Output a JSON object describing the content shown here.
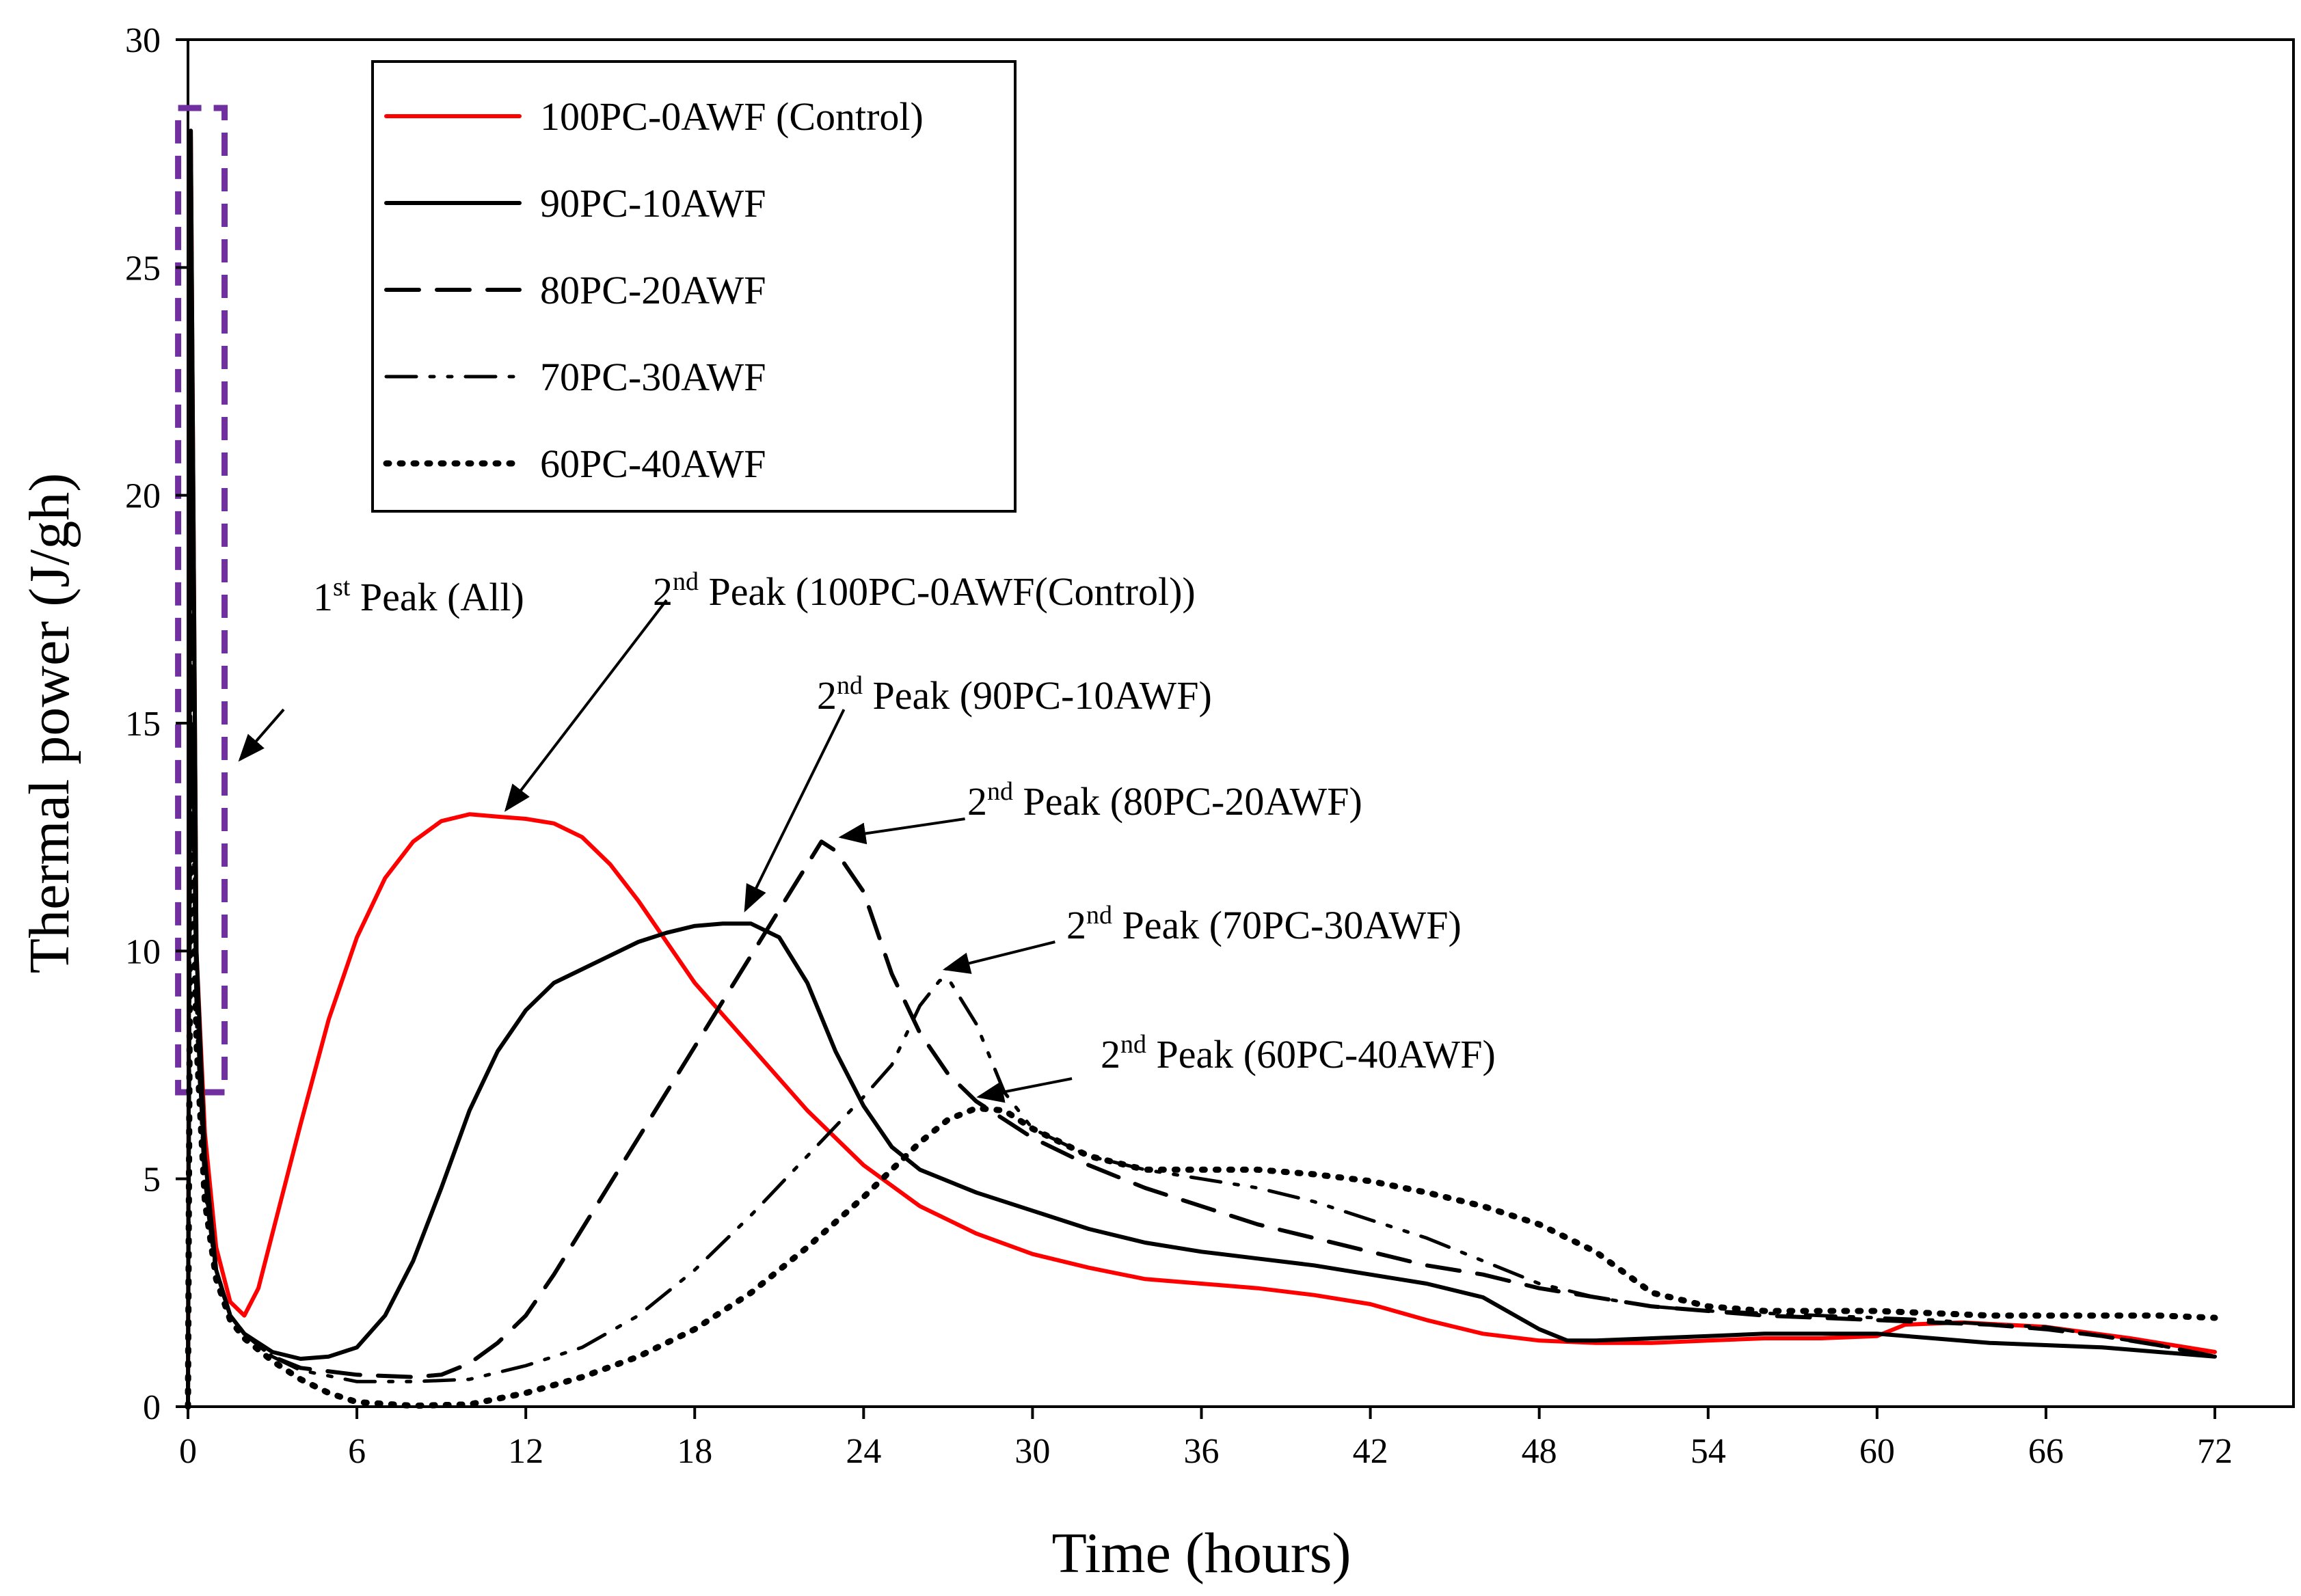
{
  "chart_data": {
    "type": "line",
    "title": "",
    "xlabel": "Time (hours)",
    "ylabel": "Thermal power (J/gh)",
    "xlim": [
      0,
      72
    ],
    "ylim": [
      0,
      30
    ],
    "xticks": [
      0,
      6,
      12,
      18,
      24,
      30,
      36,
      42,
      48,
      54,
      60,
      66,
      72
    ],
    "yticks": [
      0,
      5,
      10,
      15,
      20,
      25,
      30
    ],
    "grid": false,
    "legend_position": "top-left",
    "colors": {
      "control": "#ff0000",
      "black": "#000000",
      "highlight_box": "#7030a0"
    },
    "series": [
      {
        "name": "100PC-0AWF (Control)",
        "style": "solid",
        "color": "#ff0000",
        "points": [
          [
            0,
            0
          ],
          [
            0.1,
            28
          ],
          [
            0.3,
            10
          ],
          [
            0.6,
            6
          ],
          [
            1,
            3.5
          ],
          [
            1.5,
            2.3
          ],
          [
            2,
            2
          ],
          [
            2.5,
            2.6
          ],
          [
            3,
            3.8
          ],
          [
            4,
            6.2
          ],
          [
            5,
            8.5
          ],
          [
            6,
            10.3
          ],
          [
            7,
            11.6
          ],
          [
            8,
            12.4
          ],
          [
            9,
            12.85
          ],
          [
            10,
            13
          ],
          [
            11,
            12.95
          ],
          [
            12,
            12.9
          ],
          [
            13,
            12.8
          ],
          [
            14,
            12.5
          ],
          [
            15,
            11.9
          ],
          [
            16,
            11.1
          ],
          [
            17,
            10.2
          ],
          [
            18,
            9.3
          ],
          [
            19,
            8.6
          ],
          [
            20,
            7.9
          ],
          [
            21,
            7.2
          ],
          [
            22,
            6.5
          ],
          [
            23,
            5.9
          ],
          [
            24,
            5.3
          ],
          [
            26,
            4.4
          ],
          [
            28,
            3.8
          ],
          [
            30,
            3.35
          ],
          [
            32,
            3.05
          ],
          [
            34,
            2.8
          ],
          [
            36,
            2.7
          ],
          [
            38,
            2.6
          ],
          [
            40,
            2.45
          ],
          [
            42,
            2.25
          ],
          [
            44,
            1.9
          ],
          [
            46,
            1.6
          ],
          [
            48,
            1.45
          ],
          [
            50,
            1.4
          ],
          [
            52,
            1.4
          ],
          [
            54,
            1.45
          ],
          [
            56,
            1.5
          ],
          [
            58,
            1.5
          ],
          [
            60,
            1.55
          ],
          [
            61,
            1.8
          ],
          [
            63,
            1.85
          ],
          [
            66,
            1.75
          ],
          [
            69,
            1.5
          ],
          [
            72,
            1.2
          ]
        ]
      },
      {
        "name": "90PC-10AWF",
        "style": "solid",
        "color": "#000000",
        "points": [
          [
            0,
            0
          ],
          [
            0.1,
            28
          ],
          [
            0.3,
            10
          ],
          [
            0.6,
            5.5
          ],
          [
            1,
            3
          ],
          [
            1.5,
            2
          ],
          [
            2,
            1.6
          ],
          [
            3,
            1.2
          ],
          [
            4,
            1.05
          ],
          [
            5,
            1.1
          ],
          [
            6,
            1.3
          ],
          [
            7,
            2
          ],
          [
            8,
            3.2
          ],
          [
            9,
            4.8
          ],
          [
            10,
            6.5
          ],
          [
            11,
            7.8
          ],
          [
            12,
            8.7
          ],
          [
            13,
            9.3
          ],
          [
            14,
            9.6
          ],
          [
            15,
            9.9
          ],
          [
            16,
            10.2
          ],
          [
            17,
            10.4
          ],
          [
            18,
            10.55
          ],
          [
            19,
            10.6
          ],
          [
            20,
            10.6
          ],
          [
            21,
            10.3
          ],
          [
            22,
            9.3
          ],
          [
            23,
            7.8
          ],
          [
            24,
            6.6
          ],
          [
            25,
            5.7
          ],
          [
            26,
            5.2
          ],
          [
            28,
            4.7
          ],
          [
            30,
            4.3
          ],
          [
            32,
            3.9
          ],
          [
            34,
            3.6
          ],
          [
            36,
            3.4
          ],
          [
            38,
            3.25
          ],
          [
            40,
            3.1
          ],
          [
            42,
            2.9
          ],
          [
            44,
            2.7
          ],
          [
            46,
            2.4
          ],
          [
            48,
            1.7
          ],
          [
            49,
            1.45
          ],
          [
            50,
            1.45
          ],
          [
            52,
            1.5
          ],
          [
            54,
            1.55
          ],
          [
            56,
            1.6
          ],
          [
            58,
            1.6
          ],
          [
            60,
            1.6
          ],
          [
            62,
            1.5
          ],
          [
            64,
            1.4
          ],
          [
            66,
            1.35
          ],
          [
            68,
            1.3
          ],
          [
            70,
            1.2
          ],
          [
            72,
            1.1
          ]
        ]
      },
      {
        "name": "80PC-20AWF",
        "style": "dashed",
        "color": "#000000",
        "points": [
          [
            0,
            0
          ],
          [
            0.1,
            18
          ],
          [
            0.3,
            9
          ],
          [
            0.6,
            5
          ],
          [
            1,
            3
          ],
          [
            1.5,
            2
          ],
          [
            2,
            1.6
          ],
          [
            3,
            1.1
          ],
          [
            4,
            0.85
          ],
          [
            6,
            0.7
          ],
          [
            8,
            0.65
          ],
          [
            9,
            0.7
          ],
          [
            10,
            0.95
          ],
          [
            11,
            1.4
          ],
          [
            12,
            2
          ],
          [
            13,
            2.9
          ],
          [
            14,
            3.9
          ],
          [
            15,
            4.9
          ],
          [
            16,
            5.9
          ],
          [
            17,
            6.9
          ],
          [
            18,
            7.9
          ],
          [
            19,
            8.9
          ],
          [
            20,
            9.9
          ],
          [
            21,
            10.9
          ],
          [
            22,
            11.9
          ],
          [
            22.5,
            12.4
          ],
          [
            23,
            12.2
          ],
          [
            24,
            11.3
          ],
          [
            25,
            9.5
          ],
          [
            26,
            8.2
          ],
          [
            27,
            7.3
          ],
          [
            28,
            6.7
          ],
          [
            30,
            5.9
          ],
          [
            32,
            5.3
          ],
          [
            34,
            4.8
          ],
          [
            36,
            4.4
          ],
          [
            38,
            4
          ],
          [
            40,
            3.7
          ],
          [
            42,
            3.4
          ],
          [
            44,
            3.1
          ],
          [
            46,
            2.9
          ],
          [
            48,
            2.6
          ],
          [
            50,
            2.4
          ],
          [
            52,
            2.2
          ],
          [
            54,
            2.1
          ],
          [
            56,
            2
          ],
          [
            58,
            1.95
          ],
          [
            60,
            1.9
          ],
          [
            62,
            1.85
          ],
          [
            64,
            1.8
          ],
          [
            66,
            1.7
          ],
          [
            68,
            1.55
          ],
          [
            70,
            1.35
          ],
          [
            72,
            1.1
          ]
        ]
      },
      {
        "name": "70PC-30AWF",
        "style": "dashdotdot",
        "color": "#000000",
        "points": [
          [
            0,
            0
          ],
          [
            0.1,
            16
          ],
          [
            0.3,
            8.5
          ],
          [
            0.6,
            4.8
          ],
          [
            1,
            2.9
          ],
          [
            1.5,
            2
          ],
          [
            2,
            1.6
          ],
          [
            3,
            1.1
          ],
          [
            4,
            0.8
          ],
          [
            6,
            0.55
          ],
          [
            8,
            0.55
          ],
          [
            10,
            0.6
          ],
          [
            12,
            0.9
          ],
          [
            14,
            1.3
          ],
          [
            16,
            2
          ],
          [
            18,
            3
          ],
          [
            20,
            4.2
          ],
          [
            22,
            5.5
          ],
          [
            24,
            6.8
          ],
          [
            25,
            7.5
          ],
          [
            26,
            8.8
          ],
          [
            26.7,
            9.35
          ],
          [
            27,
            9.4
          ],
          [
            28,
            8.4
          ],
          [
            29,
            6.9
          ],
          [
            30,
            6.1
          ],
          [
            32,
            5.5
          ],
          [
            34,
            5.2
          ],
          [
            36,
            5
          ],
          [
            38,
            4.8
          ],
          [
            40,
            4.5
          ],
          [
            42,
            4.1
          ],
          [
            44,
            3.7
          ],
          [
            46,
            3.2
          ],
          [
            48,
            2.7
          ],
          [
            50,
            2.4
          ],
          [
            52,
            2.2
          ],
          [
            54,
            2.1
          ],
          [
            56,
            2.05
          ],
          [
            58,
            2
          ],
          [
            60,
            1.95
          ],
          [
            62,
            1.9
          ],
          [
            64,
            1.8
          ],
          [
            66,
            1.75
          ],
          [
            68,
            1.55
          ],
          [
            70,
            1.35
          ],
          [
            72,
            1.1
          ]
        ]
      },
      {
        "name": "60PC-40AWF",
        "style": "dotted",
        "color": "#000000",
        "points": [
          [
            0,
            0
          ],
          [
            0.1,
            14
          ],
          [
            0.3,
            8
          ],
          [
            0.6,
            4.5
          ],
          [
            1,
            2.8
          ],
          [
            1.5,
            1.9
          ],
          [
            2,
            1.5
          ],
          [
            3,
            1
          ],
          [
            4,
            0.6
          ],
          [
            5,
            0.3
          ],
          [
            6,
            0.1
          ],
          [
            8,
            0.02
          ],
          [
            10,
            0.05
          ],
          [
            12,
            0.3
          ],
          [
            14,
            0.65
          ],
          [
            16,
            1.1
          ],
          [
            18,
            1.7
          ],
          [
            20,
            2.5
          ],
          [
            22,
            3.5
          ],
          [
            24,
            4.6
          ],
          [
            26,
            5.8
          ],
          [
            27,
            6.3
          ],
          [
            28,
            6.55
          ],
          [
            29,
            6.5
          ],
          [
            30,
            6.1
          ],
          [
            32,
            5.5
          ],
          [
            34,
            5.2
          ],
          [
            36,
            5.2
          ],
          [
            38,
            5.2
          ],
          [
            40,
            5.1
          ],
          [
            42,
            4.95
          ],
          [
            44,
            4.7
          ],
          [
            46,
            4.4
          ],
          [
            48,
            4
          ],
          [
            50,
            3.4
          ],
          [
            52,
            2.5
          ],
          [
            54,
            2.2
          ],
          [
            56,
            2.1
          ],
          [
            58,
            2.1
          ],
          [
            60,
            2.1
          ],
          [
            62,
            2.05
          ],
          [
            64,
            2
          ],
          [
            66,
            2
          ],
          [
            68,
            2
          ],
          [
            70,
            2
          ],
          [
            72,
            1.95
          ]
        ]
      }
    ],
    "annotations": [
      {
        "id": "peak1",
        "text_main": "1",
        "text_sup": "st",
        "text_rest": " Peak (All)",
        "arrow_from": [
          3.4,
          15.3
        ],
        "arrow_to": [
          1.85,
          14.2
        ]
      },
      {
        "id": "peak2-control",
        "text_main": "2",
        "text_sup": "nd",
        "text_rest": " Peak (100PC-0AWF(Control))",
        "arrow_from": [
          17,
          17.7
        ],
        "arrow_to": [
          11.3,
          13.1
        ]
      },
      {
        "id": "peak2-90",
        "text_main": "2",
        "text_sup": "nd",
        "text_rest": " Peak (90PC-10AWF)",
        "arrow_from": [
          23.3,
          15.3
        ],
        "arrow_to": [
          19.8,
          10.9
        ]
      },
      {
        "id": "peak2-80",
        "text_main": "2",
        "text_sup": "nd",
        "text_rest": " Peak (80PC-20AWF)",
        "arrow_from": [
          27.6,
          12.9
        ],
        "arrow_to": [
          23.2,
          12.5
        ]
      },
      {
        "id": "peak2-70",
        "text_main": "2",
        "text_sup": "nd",
        "text_rest": " Peak (70PC-30AWF)",
        "arrow_from": [
          30.8,
          10.2
        ],
        "arrow_to": [
          26.9,
          9.6
        ]
      },
      {
        "id": "peak2-60",
        "text_main": "2",
        "text_sup": "nd",
        "text_rest": " Peak (60PC-40AWF)",
        "arrow_from": [
          31.4,
          7.2
        ],
        "arrow_to": [
          28.1,
          6.8
        ]
      }
    ],
    "highlight_region": {
      "x": [
        -0.35,
        1.3
      ],
      "y": [
        6.9,
        28.5
      ],
      "color": "#7030a0",
      "style": "dashed"
    }
  }
}
